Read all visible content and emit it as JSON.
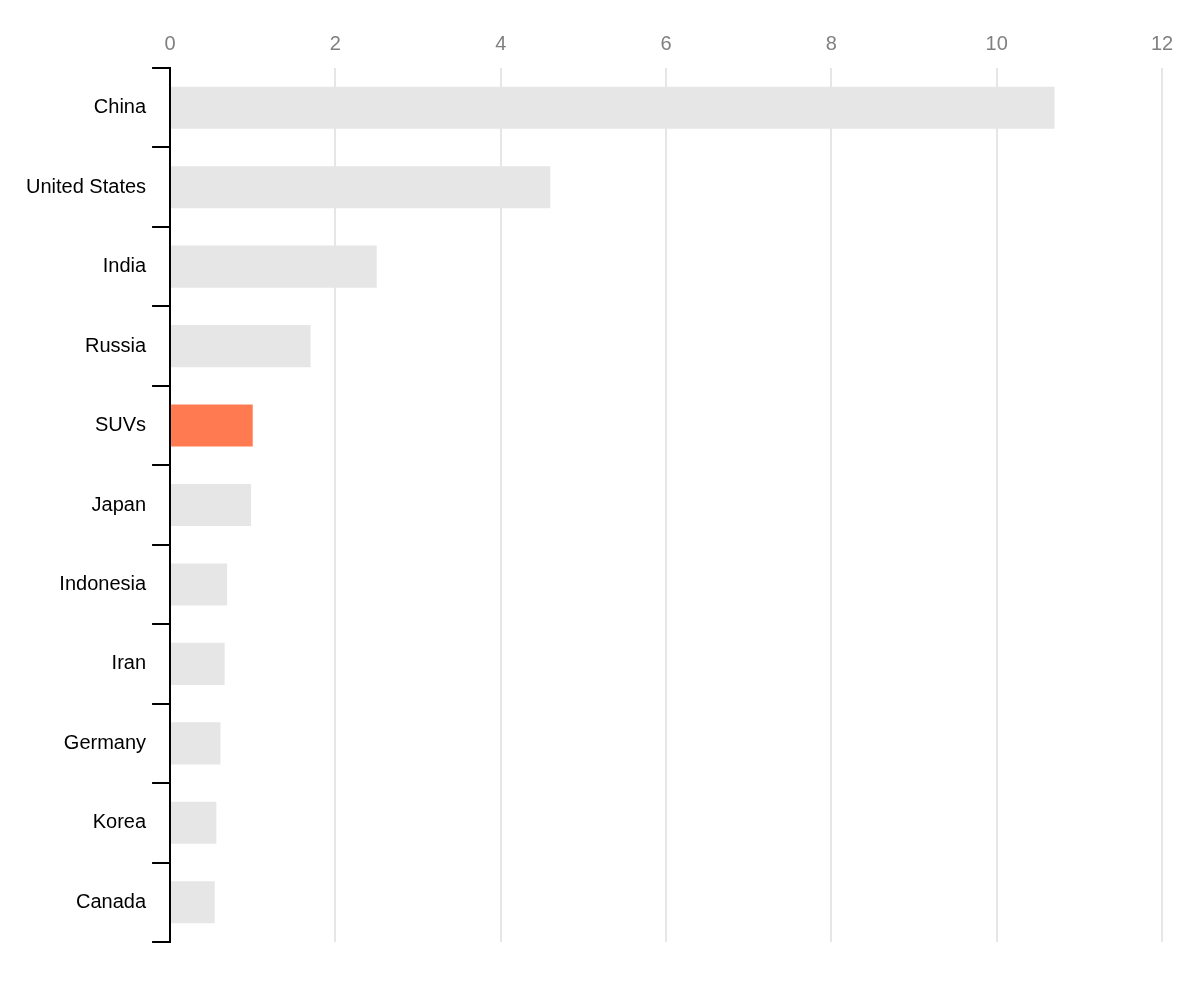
{
  "chart_data": {
    "type": "bar",
    "orientation": "horizontal",
    "categories": [
      "China",
      "United States",
      "India",
      "Russia",
      "SUVs",
      "Japan",
      "Indonesia",
      "Iran",
      "Germany",
      "Korea",
      "Canada"
    ],
    "values": [
      10.7,
      4.6,
      2.5,
      1.7,
      1.0,
      0.98,
      0.69,
      0.66,
      0.61,
      0.56,
      0.54
    ],
    "colors": [
      "#e6e6e6",
      "#e6e6e6",
      "#e6e6e6",
      "#e6e6e6",
      "#ff7a50",
      "#e6e6e6",
      "#e6e6e6",
      "#e6e6e6",
      "#e6e6e6",
      "#e6e6e6",
      "#e6e6e6"
    ],
    "xlim": [
      0,
      12
    ],
    "xticks": [
      0,
      2,
      4,
      6,
      8,
      10,
      12
    ],
    "grid": true
  }
}
